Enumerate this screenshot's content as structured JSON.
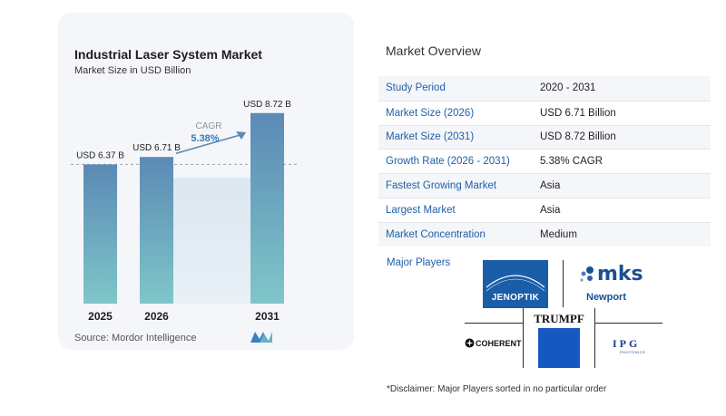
{
  "chart_data": {
    "type": "bar",
    "title": "Industrial Laser System Market",
    "subtitle": "Market Size in USD Billion",
    "categories": [
      "2025",
      "2026",
      "2031"
    ],
    "values": [
      6.37,
      6.71,
      8.72
    ],
    "data_labels": [
      "USD 6.37 B",
      "USD 6.71 B",
      "USD 8.72 B"
    ],
    "ylim": [
      0,
      9
    ],
    "cagr_label": "CAGR",
    "cagr_value": "5.38%",
    "bar_color_top": "#5b8ab5",
    "bar_color_bottom": "#7fc6c9",
    "grid": false
  },
  "source": "Source:  Mordor Intelligence",
  "overview": {
    "title": "Market Overview",
    "rows": [
      {
        "label": "Study Period",
        "value": "2020 - 2031"
      },
      {
        "label": "Market Size (2026)",
        "value": "USD 6.71 Billion"
      },
      {
        "label": "Market Size (2031)",
        "value": "USD 8.72 Billion"
      },
      {
        "label": "Growth Rate (2026 - 2031)",
        "value": "5.38% CAGR"
      },
      {
        "label": "Fastest Growing Market",
        "value": "Asia"
      },
      {
        "label": "Largest Market",
        "value": "Asia"
      },
      {
        "label": "Market Concentration",
        "value": "Medium"
      }
    ]
  },
  "players": {
    "label": "Major Players",
    "logos": [
      "JENOPTIK",
      "mks",
      "Newport",
      "TRUMPF",
      "COHERENT",
      "IPG",
      "PHOTONICS"
    ]
  },
  "disclaimer": "*Disclaimer: Major Players sorted in no particular order"
}
